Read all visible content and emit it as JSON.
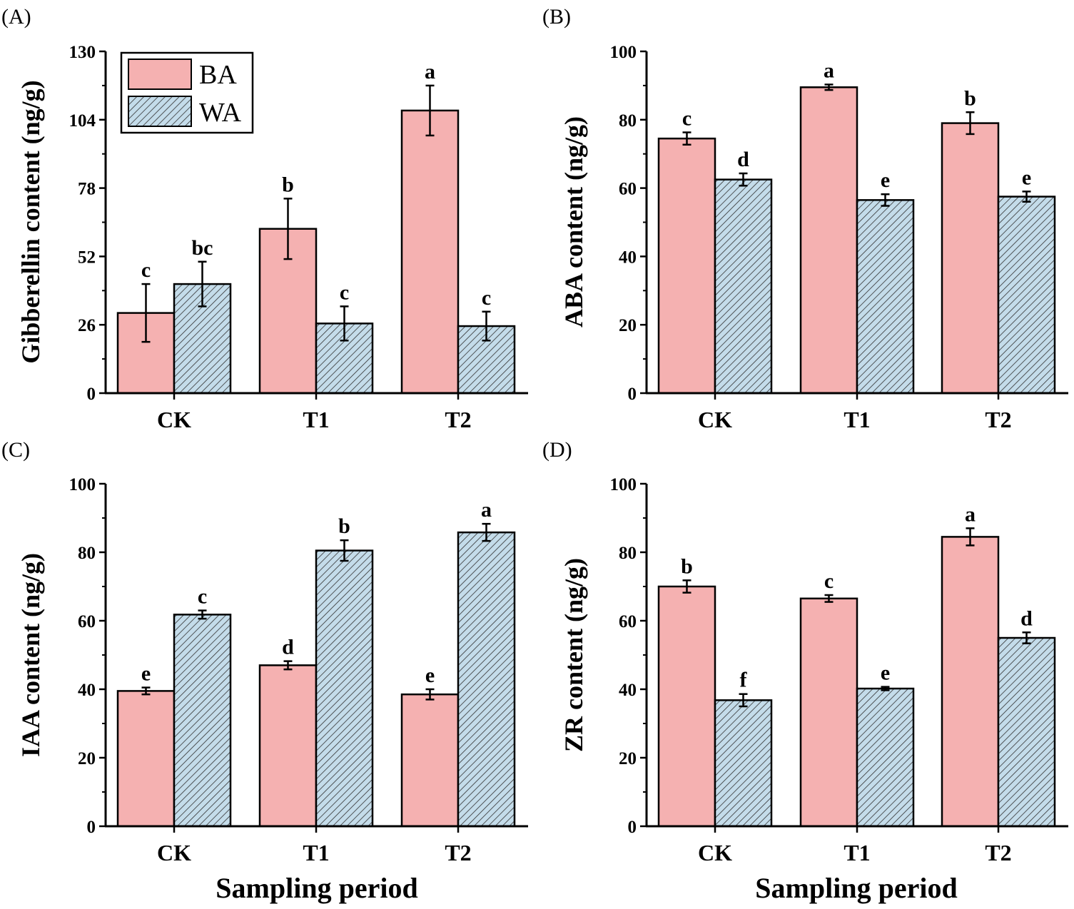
{
  "colors": {
    "BA": "#f5b1b1",
    "WA": "#c4dcea",
    "WA_hatch": "#333333",
    "axis": "#000000"
  },
  "legend": {
    "entries": [
      {
        "key": "BA",
        "label": "BA"
      },
      {
        "key": "WA",
        "label": "WA"
      }
    ]
  },
  "chart_data": [
    {
      "panel": "(A)",
      "type": "bar",
      "categories": [
        "CK",
        "T1",
        "T2"
      ],
      "series": [
        {
          "name": "BA",
          "values": [
            30.5,
            62.5,
            107.5
          ],
          "errors": [
            11,
            11.5,
            9.5
          ],
          "labels": [
            "c",
            "b",
            "a"
          ]
        },
        {
          "name": "WA",
          "values": [
            41.5,
            26.5,
            25.5
          ],
          "errors": [
            8.5,
            6.5,
            5.5
          ],
          "labels": [
            "bc",
            "c",
            "c"
          ]
        }
      ],
      "title": "",
      "xlabel": "",
      "ylabel": "Gibberellin content (ng/g)",
      "ylim": [
        0,
        130
      ],
      "yticks": [
        0,
        26,
        52,
        78,
        104,
        130
      ],
      "grid": false,
      "legend": "top-left"
    },
    {
      "panel": "(B)",
      "type": "bar",
      "categories": [
        "CK",
        "T1",
        "T2"
      ],
      "series": [
        {
          "name": "BA",
          "values": [
            74.5,
            89.5,
            79
          ],
          "errors": [
            1.8,
            0.8,
            3.2
          ],
          "labels": [
            "c",
            "a",
            "b"
          ]
        },
        {
          "name": "WA",
          "values": [
            62.5,
            56.5,
            57.5
          ],
          "errors": [
            1.8,
            1.7,
            1.5
          ],
          "labels": [
            "d",
            "e",
            "e"
          ]
        }
      ],
      "title": "",
      "xlabel": "",
      "ylabel": "ABA content (ng/g)",
      "ylim": [
        0,
        100
      ],
      "yticks": [
        0,
        20,
        40,
        60,
        80,
        100
      ],
      "grid": false
    },
    {
      "panel": "(C)",
      "type": "bar",
      "categories": [
        "CK",
        "T1",
        "T2"
      ],
      "series": [
        {
          "name": "BA",
          "values": [
            39.5,
            47,
            38.5
          ],
          "errors": [
            1,
            1.2,
            1.5
          ],
          "labels": [
            "e",
            "d",
            "e"
          ]
        },
        {
          "name": "WA",
          "values": [
            61.8,
            80.5,
            85.8
          ],
          "errors": [
            1.2,
            3,
            2.5
          ],
          "labels": [
            "c",
            "b",
            "a"
          ]
        }
      ],
      "title": "",
      "xlabel": "Sampling period",
      "ylabel": "IAA content (ng/g)",
      "ylim": [
        0,
        100
      ],
      "yticks": [
        0,
        20,
        40,
        60,
        80,
        100
      ],
      "grid": false
    },
    {
      "panel": "(D)",
      "type": "bar",
      "categories": [
        "CK",
        "T1",
        "T2"
      ],
      "series": [
        {
          "name": "BA",
          "values": [
            70,
            66.5,
            84.5
          ],
          "errors": [
            1.8,
            1,
            2.5
          ],
          "labels": [
            "b",
            "c",
            "a"
          ]
        },
        {
          "name": "WA",
          "values": [
            36.8,
            40.2,
            55
          ],
          "errors": [
            1.8,
            0.5,
            1.6
          ],
          "labels": [
            "f",
            "e",
            "d"
          ]
        }
      ],
      "title": "",
      "xlabel": "Sampling period",
      "ylabel": "ZR content (ng/g)",
      "ylim": [
        0,
        100
      ],
      "yticks": [
        0,
        20,
        40,
        60,
        80,
        100
      ],
      "grid": false
    }
  ]
}
